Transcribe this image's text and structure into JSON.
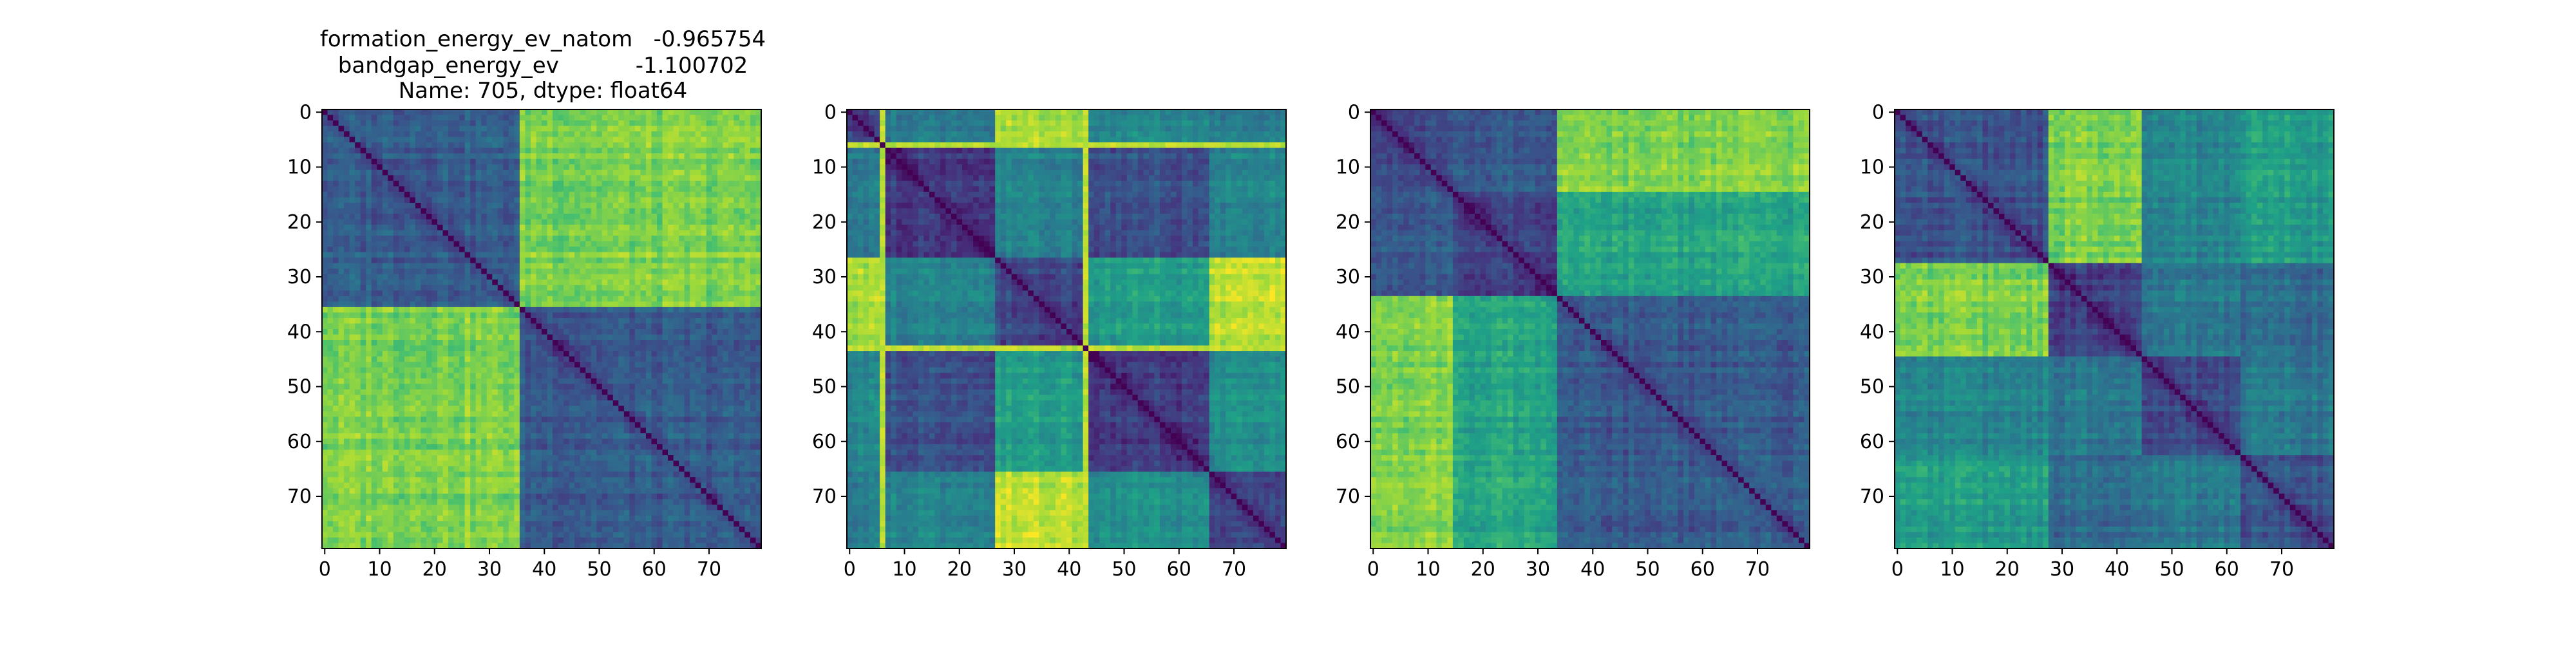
{
  "figure_title": {
    "lines": [
      "formation_energy_ev_natom   -0.965754",
      "bandgap_energy_ev           -1.100702",
      "Name: 705, dtype: float64"
    ]
  },
  "colormap": [
    "#440154",
    "#46327e",
    "#365c8d",
    "#277f8e",
    "#1fa187",
    "#4ac16d",
    "#a0da39",
    "#fde725"
  ],
  "chart_data": [
    {
      "type": "heatmap",
      "n": 80,
      "xticks": [
        0,
        10,
        20,
        30,
        40,
        50,
        60,
        70
      ],
      "yticks": [
        0,
        10,
        20,
        30,
        40,
        50,
        60,
        70
      ],
      "groups": [
        [
          0,
          36
        ],
        [
          36,
          80
        ]
      ],
      "block_matrix": [
        [
          0.3,
          0.8
        ],
        [
          0.8,
          0.28
        ]
      ],
      "grid": false
    },
    {
      "type": "heatmap",
      "n": 80,
      "xticks": [
        0,
        10,
        20,
        30,
        40,
        50,
        60,
        70
      ],
      "yticks": [
        0,
        10,
        20,
        30,
        40,
        50,
        60,
        70
      ],
      "groups": [
        [
          0,
          6
        ],
        [
          6,
          27
        ],
        [
          27,
          43
        ],
        [
          43,
          66
        ],
        [
          66,
          80
        ]
      ],
      "block_matrix": [
        [
          0.2,
          0.4,
          0.85,
          0.45,
          0.4
        ],
        [
          0.4,
          0.18,
          0.45,
          0.25,
          0.45
        ],
        [
          0.85,
          0.45,
          0.2,
          0.55,
          0.9
        ],
        [
          0.45,
          0.25,
          0.55,
          0.18,
          0.5
        ],
        [
          0.4,
          0.45,
          0.9,
          0.5,
          0.2
        ]
      ],
      "bright_lines": [
        6,
        43
      ],
      "grid": false
    },
    {
      "type": "heatmap",
      "n": 80,
      "xticks": [
        0,
        10,
        20,
        30,
        40,
        50,
        60,
        70
      ],
      "yticks": [
        0,
        10,
        20,
        30,
        40,
        50,
        60,
        70
      ],
      "groups": [
        [
          0,
          15
        ],
        [
          15,
          34
        ],
        [
          34,
          80
        ]
      ],
      "block_matrix": [
        [
          0.25,
          0.3,
          0.82
        ],
        [
          0.3,
          0.22,
          0.6
        ],
        [
          0.82,
          0.6,
          0.28
        ]
      ],
      "grid": false
    },
    {
      "type": "heatmap",
      "n": 80,
      "xticks": [
        0,
        10,
        20,
        30,
        40,
        50,
        60,
        70
      ],
      "yticks": [
        0,
        10,
        20,
        30,
        40,
        50,
        60,
        70
      ],
      "groups": [
        [
          0,
          28
        ],
        [
          28,
          45
        ],
        [
          45,
          63
        ],
        [
          63,
          80
        ]
      ],
      "block_matrix": [
        [
          0.25,
          0.8,
          0.45,
          0.55
        ],
        [
          0.8,
          0.2,
          0.4,
          0.35
        ],
        [
          0.45,
          0.4,
          0.22,
          0.4
        ],
        [
          0.55,
          0.35,
          0.4,
          0.25
        ]
      ],
      "grid": false
    }
  ]
}
